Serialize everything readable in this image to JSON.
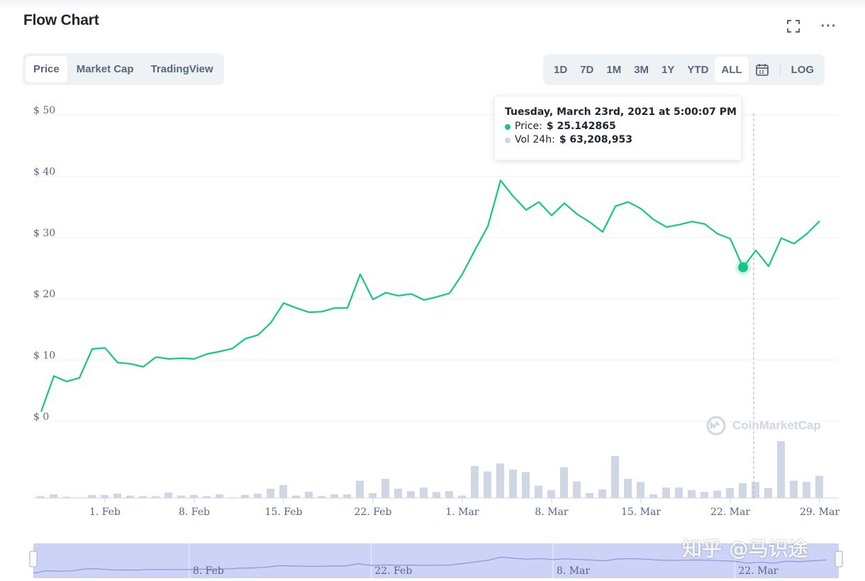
{
  "header": {
    "title": "Flow Chart",
    "icons": [
      "fullscreen-icon",
      "more-icon"
    ],
    "more_label": "···"
  },
  "tabs": [
    {
      "label": "Price",
      "active": true
    },
    {
      "label": "Market Cap",
      "active": false
    },
    {
      "label": "TradingView",
      "active": false
    }
  ],
  "ranges": [
    {
      "label": "1D",
      "active": false
    },
    {
      "label": "7D",
      "active": false
    },
    {
      "label": "1M",
      "active": false
    },
    {
      "label": "3M",
      "active": false
    },
    {
      "label": "1Y",
      "active": false
    },
    {
      "label": "YTD",
      "active": false
    },
    {
      "label": "ALL",
      "active": true
    }
  ],
  "log_label": "LOG",
  "tooltip": {
    "date": "Tuesday, March 23rd, 2021 at 5:00:07 PM",
    "price_label": "Price:",
    "price_value": "$ 25.142865",
    "vol_label": "Vol 24h:",
    "vol_value": "$ 63,208,953"
  },
  "watermark": "CoinMarketCap",
  "overlay_text": "知乎 @马识途",
  "colors": {
    "line": "#16c784",
    "volume": "#cfd6e4",
    "grid": "#eff2f5",
    "axis_text": "#58667e",
    "navigator_fill": "#c6ccf6"
  },
  "chart_data": {
    "type": "line",
    "y_tick_labels": [
      "$ 0",
      "$ 10",
      "$ 20",
      "$ 30",
      "$ 40",
      "$ 50"
    ],
    "ylim": [
      0,
      50
    ],
    "x_tick_labels": [
      "1. Feb",
      "8. Feb",
      "15. Feb",
      "22. Feb",
      "1. Mar",
      "8. Mar",
      "15. Mar",
      "22. Mar",
      "29. Mar"
    ],
    "navigator_labels": [
      "8. Feb",
      "22. Feb",
      "8. Mar",
      "22. Mar"
    ],
    "series": [
      {
        "key": "price",
        "x": [
          "2021-01-27",
          "2021-01-28",
          "2021-01-29",
          "2021-01-30",
          "2021-01-31",
          "2021-02-01",
          "2021-02-02",
          "2021-02-03",
          "2021-02-04",
          "2021-02-05",
          "2021-02-06",
          "2021-02-07",
          "2021-02-08",
          "2021-02-09",
          "2021-02-10",
          "2021-02-11",
          "2021-02-12",
          "2021-02-13",
          "2021-02-14",
          "2021-02-15",
          "2021-02-16",
          "2021-02-17",
          "2021-02-18",
          "2021-02-19",
          "2021-02-20",
          "2021-02-21",
          "2021-02-22",
          "2021-02-23",
          "2021-02-24",
          "2021-02-25",
          "2021-02-26",
          "2021-02-27",
          "2021-02-28",
          "2021-03-01",
          "2021-03-02",
          "2021-03-03",
          "2021-03-04",
          "2021-03-05",
          "2021-03-06",
          "2021-03-07",
          "2021-03-08",
          "2021-03-09",
          "2021-03-10",
          "2021-03-11",
          "2021-03-12",
          "2021-03-13",
          "2021-03-14",
          "2021-03-15",
          "2021-03-16",
          "2021-03-17",
          "2021-03-18",
          "2021-03-19",
          "2021-03-20",
          "2021-03-21",
          "2021-03-22",
          "2021-03-23",
          "2021-03-24",
          "2021-03-25",
          "2021-03-26",
          "2021-03-27",
          "2021-03-28",
          "2021-03-29",
          "2021-03-30"
        ],
        "values": [
          1.6,
          7.4,
          6.5,
          7.1,
          11.8,
          12.0,
          9.6,
          9.4,
          8.9,
          10.5,
          10.2,
          10.3,
          10.2,
          11.0,
          11.4,
          11.9,
          13.5,
          14.1,
          16.1,
          19.3,
          18.5,
          17.8,
          17.9,
          18.5,
          18.5,
          24.0,
          19.9,
          21.0,
          20.5,
          20.8,
          19.8,
          20.3,
          20.9,
          24.0,
          28.0,
          31.8,
          39.3,
          36.7,
          34.5,
          35.8,
          33.6,
          35.6,
          33.8,
          32.5,
          30.9,
          35.1,
          35.8,
          34.7,
          32.9,
          31.7,
          32.1,
          32.6,
          32.2,
          30.6,
          29.8,
          25.1,
          27.9,
          25.3,
          29.9,
          29.0,
          30.6,
          32.7,
          null
        ]
      },
      {
        "key": "volume_24h",
        "values": [
          0.3,
          0.6,
          0.2,
          0.1,
          0.5,
          0.5,
          0.7,
          0.4,
          0.3,
          0.3,
          0.9,
          0.4,
          0.5,
          0.3,
          0.6,
          0.1,
          0.5,
          0.7,
          1.5,
          2.1,
          0.4,
          1.0,
          0.3,
          0.6,
          0.6,
          2.8,
          0.8,
          3.1,
          1.5,
          1.1,
          1.7,
          1.0,
          1.1,
          0.4,
          5.2,
          4.3,
          5.6,
          4.6,
          4.2,
          2.0,
          1.3,
          5.0,
          2.7,
          0.8,
          1.4,
          6.8,
          3.1,
          2.6,
          0.6,
          1.7,
          1.7,
          1.3,
          1.0,
          1.2,
          1.6,
          2.4,
          2.6,
          1.6,
          9.2,
          2.8,
          2.6,
          3.6,
          0
        ]
      }
    ],
    "highlight": {
      "x": "2021-03-23",
      "value": 25.142865
    },
    "grid": true,
    "legend": "none"
  }
}
